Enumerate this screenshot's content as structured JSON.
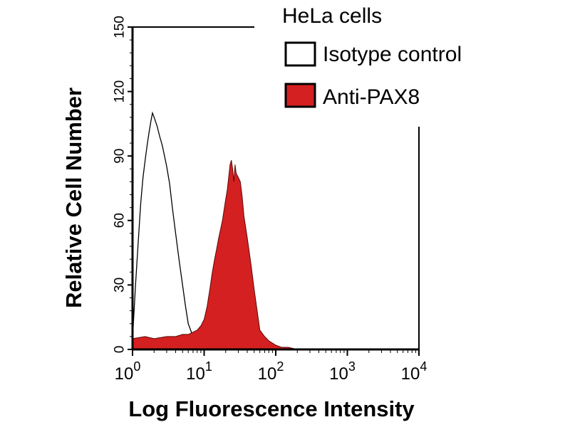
{
  "chart_data": {
    "type": "area",
    "title": "HeLa cells",
    "xlabel": "Log Fluorescence Intensity",
    "ylabel": "Relative Cell Number",
    "x_scale": "log",
    "xlim": [
      1,
      10000
    ],
    "ylim": [
      0,
      150
    ],
    "x_ticks": [
      {
        "base": "10",
        "exp": "0",
        "value": 1
      },
      {
        "base": "10",
        "exp": "1",
        "value": 10
      },
      {
        "base": "10",
        "exp": "2",
        "value": 100
      },
      {
        "base": "10",
        "exp": "3",
        "value": 1000
      },
      {
        "base": "10",
        "exp": "4",
        "value": 10000
      }
    ],
    "y_ticks": [
      "0",
      "30",
      "60",
      "90",
      "120",
      "150"
    ],
    "legend": {
      "position": "top-right",
      "entries": [
        {
          "label": "Isotype control",
          "fill": "#ffffff",
          "stroke": "#000000"
        },
        {
          "label": "Anti-PAX8",
          "fill": "#d42020",
          "stroke": "#000000"
        }
      ]
    },
    "series": [
      {
        "name": "Isotype control",
        "style": "outline",
        "color": "#000000",
        "x": [
          1,
          1.1,
          1.2,
          1.3,
          1.4,
          1.5,
          1.6,
          1.7,
          1.8,
          1.9,
          2.0,
          2.2,
          2.4,
          2.6,
          2.8,
          3.0,
          3.3,
          3.6,
          4.0,
          4.5,
          5.0,
          5.5,
          6.0,
          7.0,
          8.0,
          10,
          20,
          100,
          1000,
          10000
        ],
        "y": [
          5,
          30,
          50,
          68,
          80,
          88,
          95,
          101,
          106,
          110,
          108,
          104,
          99,
          95,
          90,
          85,
          77,
          66,
          54,
          41,
          30,
          20,
          12,
          6,
          3,
          2,
          1,
          0,
          0,
          0
        ]
      },
      {
        "name": "Anti-PAX8",
        "style": "filled",
        "color": "#d42020",
        "x": [
          1,
          1.5,
          2,
          3,
          4,
          5,
          6,
          7,
          8,
          9,
          10,
          11,
          12,
          13,
          14,
          15,
          16,
          18,
          20,
          21,
          22,
          23,
          24,
          25,
          26,
          27,
          28,
          30,
          32,
          34,
          36,
          40,
          45,
          50,
          55,
          60,
          70,
          80,
          100,
          120,
          150,
          200,
          10000
        ],
        "y": [
          5,
          6,
          5,
          6,
          6,
          7,
          7,
          8,
          9,
          11,
          14,
          20,
          28,
          36,
          42,
          47,
          52,
          60,
          70,
          74,
          80,
          86,
          88,
          84,
          78,
          86,
          82,
          80,
          78,
          71,
          62,
          52,
          40,
          28,
          18,
          9,
          6,
          4,
          2,
          1,
          1,
          0,
          0
        ]
      }
    ]
  }
}
